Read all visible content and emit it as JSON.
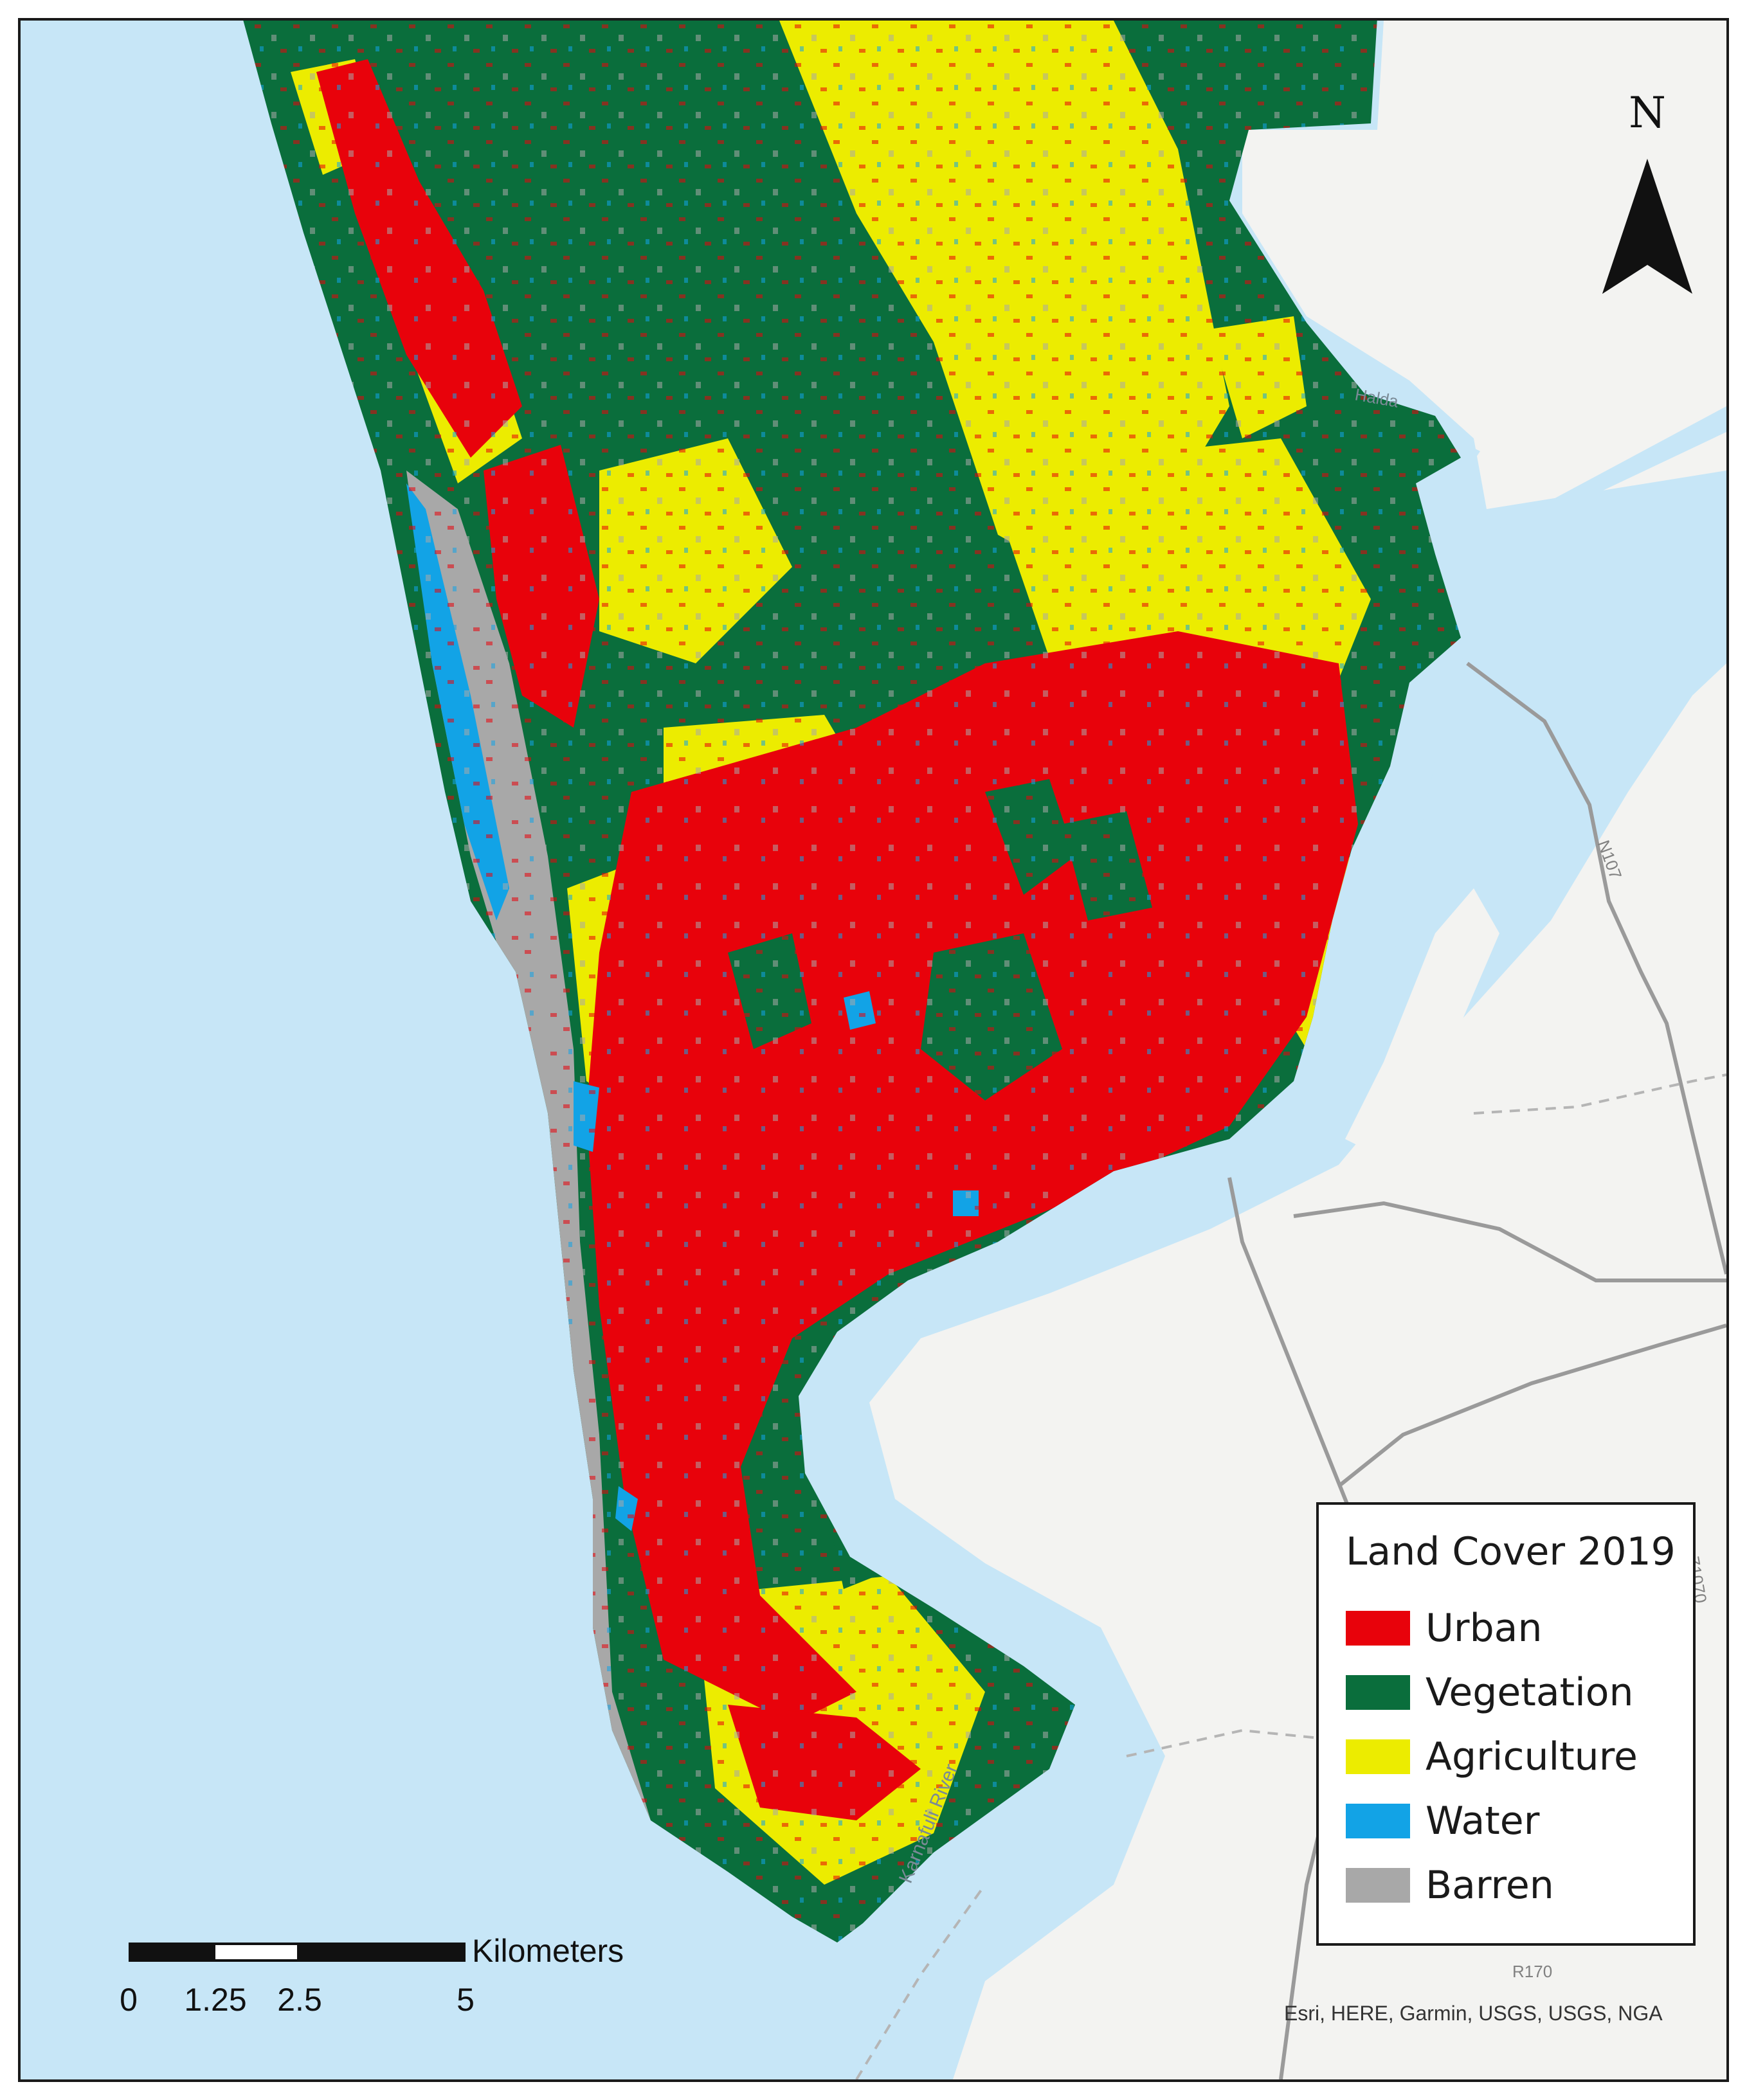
{
  "legend": {
    "title": "Land Cover 2019",
    "items": [
      {
        "label": "Urban",
        "color": "#e8020b"
      },
      {
        "label": "Vegetation",
        "color": "#0a6e3c"
      },
      {
        "label": "Agriculture",
        "color": "#ecec00"
      },
      {
        "label": "Water",
        "color": "#12a3e6"
      },
      {
        "label": "Barren",
        "color": "#a8a8a8"
      }
    ]
  },
  "scale_bar": {
    "unit": "Kilometers",
    "ticks": [
      "0",
      "1.25",
      "2.5",
      "5"
    ]
  },
  "north_arrow": {
    "letter": "N"
  },
  "attribution": "Esri, HERE, Garmin, USGS, USGS, NGA",
  "basemap_labels": {
    "river_halda": "Halda",
    "river_karnafuli": "Karnafuli River",
    "road_n107": "N107",
    "road_r170": "R170",
    "road_z1070": "Z1070"
  },
  "colors": {
    "sea": "#c7e6f7",
    "land_base": "#f3f3f1",
    "roads": "#9a9a9a"
  }
}
